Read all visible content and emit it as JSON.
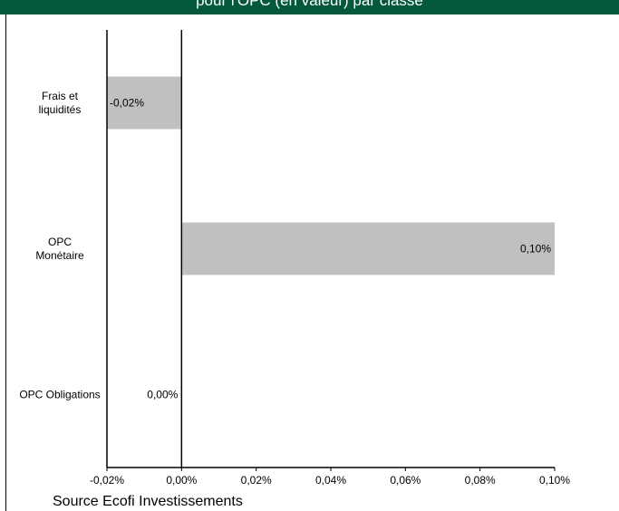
{
  "header": {
    "title": "pour l'OPC (en valeur) par classe"
  },
  "chart_data": {
    "type": "bar",
    "orientation": "horizontal",
    "categories": [
      "Frais et liquidités",
      "OPC Monétaire",
      "OPC Obligations"
    ],
    "category_lines": [
      [
        "Frais et",
        "liquidités"
      ],
      [
        "OPC",
        "Monétaire"
      ],
      [
        "OPC Obligations"
      ]
    ],
    "values": [
      -0.02,
      0.1,
      0.0
    ],
    "data_labels": [
      "-0,02%",
      "0,10%",
      "0,00%"
    ],
    "x_ticks": [
      -0.02,
      0,
      0.02,
      0.04,
      0.06,
      0.08,
      0.1
    ],
    "x_tick_labels": [
      "-0,02%",
      "0,00%",
      "0,02%",
      "0,04%",
      "0,06%",
      "0,08%",
      "0,10%"
    ],
    "xlim": [
      -0.02,
      0.1
    ],
    "bar_color": "#c0c0c0",
    "grid": false
  },
  "footer": {
    "source": "Source Ecofi Investissements"
  }
}
